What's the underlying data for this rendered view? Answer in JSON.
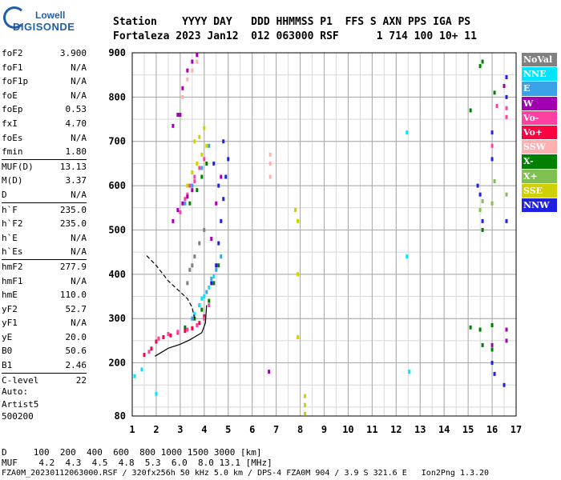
{
  "logo": {
    "line1": "Lowell",
    "line2": "DIGISONDE"
  },
  "header": {
    "labels": "Station    YYYY DAY   DDD HHMMSS P1  FFS S AXN PPS IGA PS",
    "values": "Fortaleza 2023 Jan12  012 063000 RSF      1 714 100 10+ 11"
  },
  "params": [
    {
      "k": "foF2",
      "v": "3.900"
    },
    {
      "k": "foF1",
      "v": "N/A"
    },
    {
      "k": "foF1p",
      "v": "N/A"
    },
    {
      "k": "foE",
      "v": "N/A"
    },
    {
      "k": "foEp",
      "v": "0.53"
    },
    {
      "k": "fxI",
      "v": "4.70"
    },
    {
      "k": "foEs",
      "v": "N/A"
    },
    {
      "k": "fmin",
      "v": "1.80"
    },
    {
      "k": "MUF(D)",
      "v": "13.13",
      "sep": true
    },
    {
      "k": "M(D)",
      "v": "3.37"
    },
    {
      "k": "D",
      "v": "N/A"
    },
    {
      "k": "h`F",
      "v": "235.0",
      "sep": true
    },
    {
      "k": "h`F2",
      "v": "235.0"
    },
    {
      "k": "h`E",
      "v": "N/A"
    },
    {
      "k": "h`Es",
      "v": "N/A"
    },
    {
      "k": "hmF2",
      "v": "277.9",
      "sep": true
    },
    {
      "k": "hmF1",
      "v": "N/A"
    },
    {
      "k": "hmE",
      "v": "110.0"
    },
    {
      "k": "yF2",
      "v": "52.7"
    },
    {
      "k": "yF1",
      "v": "N/A"
    },
    {
      "k": "yE",
      "v": "20.0"
    },
    {
      "k": "B0",
      "v": "50.6"
    },
    {
      "k": "B1",
      "v": "2.46"
    },
    {
      "k": "C-level",
      "v": "22",
      "sep": true
    }
  ],
  "autoscale": {
    "line1": "Auto:",
    "line2": "Artist5",
    "line3": "500200"
  },
  "legend": [
    {
      "label": "NoVal",
      "color": "#808080"
    },
    {
      "label": "NNE",
      "color": "#00e5ff"
    },
    {
      "label": "E",
      "color": "#3aa3e8"
    },
    {
      "label": "W",
      "color": "#a000b0"
    },
    {
      "label": "Vo-",
      "color": "#ff40a0"
    },
    {
      "label": "Vo+",
      "color": "#ff0040"
    },
    {
      "label": "SSW",
      "color": "#ffb0b0"
    },
    {
      "label": "X-",
      "color": "#008000"
    },
    {
      "label": "X+",
      "color": "#80c050"
    },
    {
      "label": "SSE",
      "color": "#d0d000"
    },
    {
      "label": "NNW",
      "color": "#2020e0"
    }
  ],
  "bottom": {
    "line1": "D     100  200  400  600  800 1000 1500 3000 [km]",
    "line2": "MUF    4.2  4.3  4.5  4.8  5.3  6.0  8.0 13.1 [MHz]",
    "line3": "FZA0M_20230112063000.RSF / 320fx256h 50 kHz 5.0 km / DPS-4 FZA0M 904 / 3.9 S 321.6 E   Ion2Png 1.3.20"
  },
  "chart_data": {
    "type": "scatter",
    "xlim": [
      1,
      17
    ],
    "ylim": [
      80,
      900
    ],
    "x_ticks": [
      1,
      2,
      3,
      4,
      5,
      6,
      7,
      8,
      9,
      10,
      11,
      12,
      13,
      14,
      15,
      16,
      17
    ],
    "y_ticks": [
      80,
      200,
      300,
      400,
      500,
      600,
      700,
      800,
      900
    ],
    "grid": true,
    "x_minor_step": 0.5,
    "y_minor_step": 50,
    "traces": [
      {
        "name": "",
        "x": [
          1.95,
          2.5,
          3.0,
          3.4,
          3.9,
          4.05,
          4.1
        ],
        "y": [
          215,
          233,
          242,
          252,
          268,
          290,
          330
        ]
      },
      {
        "name": "",
        "x": [
          1.6,
          2.0,
          2.5,
          3.0,
          3.3,
          3.5,
          3.6
        ],
        "y": [
          442,
          420,
          385,
          360,
          345,
          325,
          300
        ]
      }
    ],
    "echo_clusters": [
      {
        "color": "#ff0040",
        "x": [
          1.5,
          1.8,
          2.0,
          2.3,
          2.6,
          2.9,
          3.2,
          3.5,
          3.8,
          4.0
        ],
        "y": [
          218,
          232,
          248,
          258,
          262,
          268,
          272,
          278,
          290,
          305
        ]
      },
      {
        "color": "#ff40a0",
        "x": [
          1.7,
          2.1,
          2.5,
          2.9,
          3.3,
          3.7,
          4.0,
          4.2,
          4.4,
          4.5
        ],
        "y": [
          225,
          255,
          265,
          270,
          275,
          285,
          300,
          330,
          380,
          420
        ]
      },
      {
        "color": "#008000",
        "x": [
          3.2,
          3.6,
          3.9,
          4.2,
          4.4,
          4.6,
          3.4,
          3.7,
          3.9,
          4.1
        ],
        "y": [
          280,
          300,
          320,
          340,
          380,
          420,
          560,
          590,
          620,
          650
        ]
      },
      {
        "color": "#3aa3e8",
        "x": [
          3.5,
          3.8,
          4.1,
          4.3,
          4.5,
          4.7,
          3.2,
          3.5,
          3.9,
          4.2
        ],
        "y": [
          300,
          330,
          360,
          390,
          410,
          440,
          560,
          600,
          640,
          690
        ]
      },
      {
        "color": "#ff40a0",
        "x": [
          3.0,
          3.2,
          3.4,
          3.6,
          3.8,
          4.0,
          3.3,
          3.6
        ],
        "y": [
          540,
          570,
          600,
          620,
          640,
          660,
          580,
          610
        ]
      },
      {
        "color": "#d0d000",
        "x": [
          3.3,
          3.5,
          3.7,
          3.9,
          4.1,
          3.8,
          4.0,
          3.6
        ],
        "y": [
          600,
          630,
          650,
          670,
          690,
          710,
          730,
          700
        ]
      },
      {
        "color": "#a000b0",
        "x": [
          2.7,
          2.9,
          3.1,
          3.3,
          3.5,
          4.3,
          4.5,
          4.7,
          3.0
        ],
        "y": [
          520,
          545,
          560,
          575,
          590,
          480,
          560,
          620,
          760
        ]
      },
      {
        "color": "#2020e0",
        "x": [
          4.3,
          4.5,
          4.6,
          4.7,
          4.8,
          4.9,
          4.4,
          4.6,
          5.0,
          4.8
        ],
        "y": [
          380,
          420,
          470,
          520,
          570,
          620,
          650,
          600,
          660,
          700
        ]
      },
      {
        "color": "#ffb0b0",
        "x": [
          2.9,
          3.1,
          3.3,
          3.5,
          3.7,
          6.75,
          6.75,
          6.75
        ],
        "y": [
          760,
          800,
          840,
          860,
          880,
          620,
          650,
          670
        ]
      },
      {
        "color": "#a000b0",
        "x": [
          3.1,
          3.3,
          3.5,
          3.7,
          2.7,
          2.9
        ],
        "y": [
          820,
          860,
          880,
          895,
          735,
          760
        ]
      },
      {
        "color": "#00e5ff",
        "x": [
          3.8,
          4.0,
          4.2,
          4.4,
          3.6,
          3.9
        ],
        "y": [
          330,
          350,
          370,
          395,
          310,
          345
        ]
      },
      {
        "color": "#808080",
        "x": [
          3.4,
          3.6,
          3.8,
          4.0,
          3.3,
          3.5
        ],
        "y": [
          410,
          440,
          470,
          500,
          380,
          420
        ]
      },
      {
        "color": "#00e5ff",
        "x": [
          1.1,
          1.4,
          2.0,
          12.45,
          12.45,
          12.55
        ],
        "y": [
          170,
          185,
          130,
          720,
          440,
          180
        ]
      },
      {
        "color": "#d0d000",
        "x": [
          7.8,
          7.9,
          7.9,
          7.9,
          8.2,
          8.2,
          8.2
        ],
        "y": [
          545,
          520,
          400,
          258,
          125,
          105,
          85
        ]
      },
      {
        "color": "#2020e0",
        "x": [
          15.4,
          15.5,
          15.6,
          16.0,
          16.0,
          16.1,
          16.5,
          16.6,
          16.6,
          16.0,
          16.6
        ],
        "y": [
          600,
          580,
          520,
          720,
          660,
          175,
          150,
          800,
          845,
          200,
          520
        ]
      },
      {
        "color": "#008000",
        "x": [
          15.1,
          15.1,
          15.5,
          15.6,
          15.5,
          16.1,
          16.0,
          16.0,
          15.6,
          15.6
        ],
        "y": [
          770,
          280,
          275,
          880,
          870,
          810,
          285,
          230,
          240,
          500
        ]
      },
      {
        "color": "#80c050",
        "x": [
          15.5,
          15.6,
          16.0,
          16.1,
          16.6
        ],
        "y": [
          545,
          565,
          560,
          610,
          580
        ]
      },
      {
        "color": "#ff40a0",
        "x": [
          16.6,
          16.6,
          16.2,
          16.0
        ],
        "y": [
          755,
          775,
          780,
          690
        ]
      },
      {
        "color": "#a000b0",
        "x": [
          16.6,
          16.6,
          16.5,
          6.7,
          16.0
        ],
        "y": [
          250,
          275,
          825,
          180,
          240
        ]
      }
    ]
  }
}
